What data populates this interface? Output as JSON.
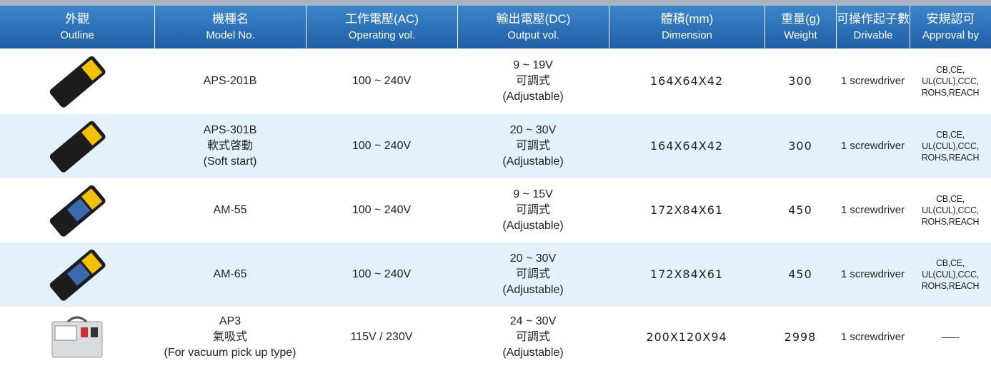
{
  "table": {
    "header": [
      {
        "zh": "外觀",
        "en": "Outline"
      },
      {
        "zh": "機種名",
        "en": "Model No."
      },
      {
        "zh": "工作電壓(AC)",
        "en": "Operating vol."
      },
      {
        "zh": "輸出電壓(DC)",
        "en": "Output vol."
      },
      {
        "zh": "體積(mm)",
        "en": "Dimension"
      },
      {
        "zh": "重量(g)",
        "en": "Weight"
      },
      {
        "zh": "可操作起子數",
        "en": "Drivable"
      },
      {
        "zh": "安規認可",
        "en": "Approval by"
      }
    ],
    "rows": [
      {
        "model": [
          "APS-201B"
        ],
        "input": "100 ~ 240V",
        "output": [
          "9 ~ 19V",
          "可調式",
          "(Adjustable)"
        ],
        "dimension": "164X64X42",
        "weight": 300,
        "drivable": "1 screwdriver",
        "approval": [
          "CB,CE,",
          "UL(CUL),CCC,",
          "ROHS,REACH"
        ]
      },
      {
        "model": [
          "APS-301B",
          "軟式啓動",
          "(Soft start)"
        ],
        "input": "100 ~ 240V",
        "output": [
          "20 ~ 30V",
          "可調式",
          "(Adjustable)"
        ],
        "dimension": "164X64X42",
        "weight": 300,
        "drivable": "1 screwdriver",
        "approval": [
          "CB,CE,",
          "UL(CUL),CCC,",
          "ROHS,REACH"
        ]
      },
      {
        "model": [
          "AM-55"
        ],
        "input": "100 ~ 240V",
        "output": [
          "9 ~ 15V",
          "可調式",
          "(Adjustable)"
        ],
        "dimension": "172X84X61",
        "weight": 450,
        "drivable": "1 screwdriver",
        "approval": [
          "CB,CE,",
          "UL(CUL),CCC,",
          "ROHS,REACH"
        ]
      },
      {
        "model": [
          "AM-65"
        ],
        "input": "100 ~ 240V",
        "output": [
          "20 ~ 30V",
          "可調式",
          "(Adjustable)"
        ],
        "dimension": "172X84X61",
        "weight": 450,
        "drivable": "1 screwdriver",
        "approval": [
          "CB,CE,",
          "UL(CUL),CCC,",
          "ROHS,REACH"
        ]
      },
      {
        "model": [
          "AP3",
          "氣吸式",
          "(For vacuum pick up type)"
        ],
        "input": "115V / 230V",
        "output": [
          "24 ~ 30V",
          "可調式",
          "(Adjustable)"
        ],
        "dimension": "200X120X94",
        "weight": 2998,
        "drivable": "1 screwdriver",
        "approval": [
          "——"
        ]
      }
    ]
  }
}
